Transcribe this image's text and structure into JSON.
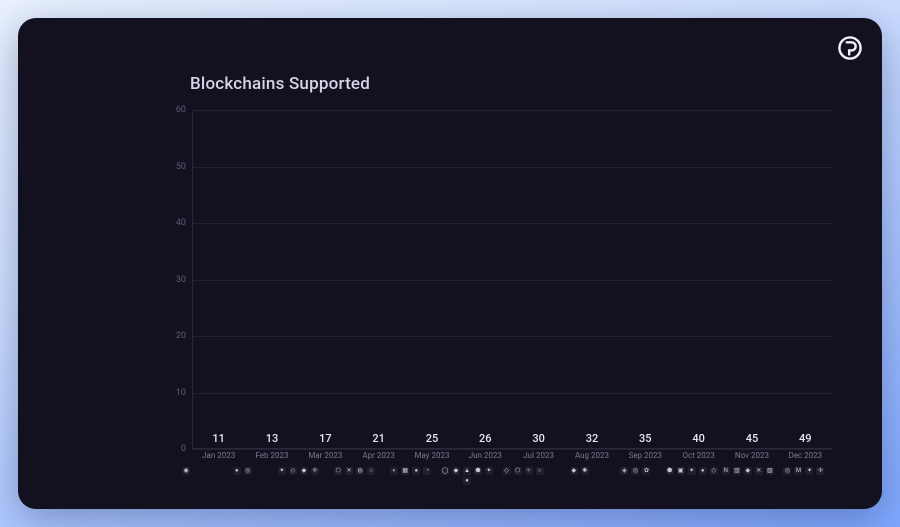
{
  "title": "Blockchains Supported",
  "title_fontsize": 17,
  "title_color": "#d6d4e6",
  "background_outer": "linear-gradient(160deg, #eaf2ff 0%, #cfe0ff 35%, #7fa8ff 100%)",
  "background_panel": "#13111f",
  "panel_shadow": "0 10px 40px rgba(20,30,80,0.35)",
  "logo_color": "#f2eefc",
  "chart": {
    "type": "bar",
    "ylim": [
      0,
      60
    ],
    "yticks": [
      0,
      10,
      20,
      30,
      40,
      50,
      60
    ],
    "ytick_color": "#5f5b78",
    "grid_color": "#24212f",
    "axis_color": "#2b2838",
    "value_label_color": "#e9e7f5",
    "xlabel_color": "#7b7796",
    "bar_width": 0.62,
    "categories": [
      "Jan 2023",
      "Feb 2023",
      "Mar 2023",
      "Apr 2023",
      "May 2023",
      "Jun 2023",
      "Jul 2023",
      "Aug 2023",
      "Sep 2023",
      "Oct 2023",
      "Nov 2023",
      "Dec 2023"
    ],
    "values": [
      11,
      13,
      17,
      21,
      25,
      26,
      30,
      32,
      35,
      40,
      45,
      49
    ],
    "bar_colors": [
      "#7b59d9",
      "#8362dd",
      "#8d6ee1",
      "#9a7de6",
      "#a38de1",
      "#ab9adb",
      "#b5a8dd",
      "#c0b6e0",
      "#cdc6e6",
      "#dcd6ee",
      "#eae6f4",
      "#f6f4fa"
    ]
  },
  "icon_clusters": [
    {
      "glyphs": [
        "◉"
      ]
    },
    {
      "glyphs": [
        "●",
        "◎"
      ]
    },
    {
      "glyphs": [
        "✦",
        "◇",
        "◆",
        "✢"
      ]
    },
    {
      "glyphs": [
        "⬡",
        "✕",
        "◍",
        "○"
      ]
    },
    {
      "glyphs": [
        "◐",
        "▦",
        "●",
        "◔"
      ]
    },
    {
      "glyphs": [
        "◯",
        "◆",
        "▲",
        "⬢",
        "✦",
        "●"
      ]
    },
    {
      "glyphs": [
        "◇",
        "⬡",
        "✧",
        "○"
      ]
    },
    {
      "glyphs": [
        "◆",
        "✱"
      ]
    },
    {
      "glyphs": [
        "◈",
        "◎",
        "✿"
      ]
    },
    {
      "glyphs": [
        "⬢",
        "▣",
        "✦",
        "●",
        "◇"
      ]
    },
    {
      "glyphs": [
        "N",
        "▥",
        "◆",
        "✕",
        "▧"
      ]
    },
    {
      "glyphs": [
        "◎",
        "M",
        "✦",
        "✢"
      ]
    }
  ],
  "icon_color": "#c8c4de",
  "icon_bg": "rgba(255,255,255,0.06)"
}
